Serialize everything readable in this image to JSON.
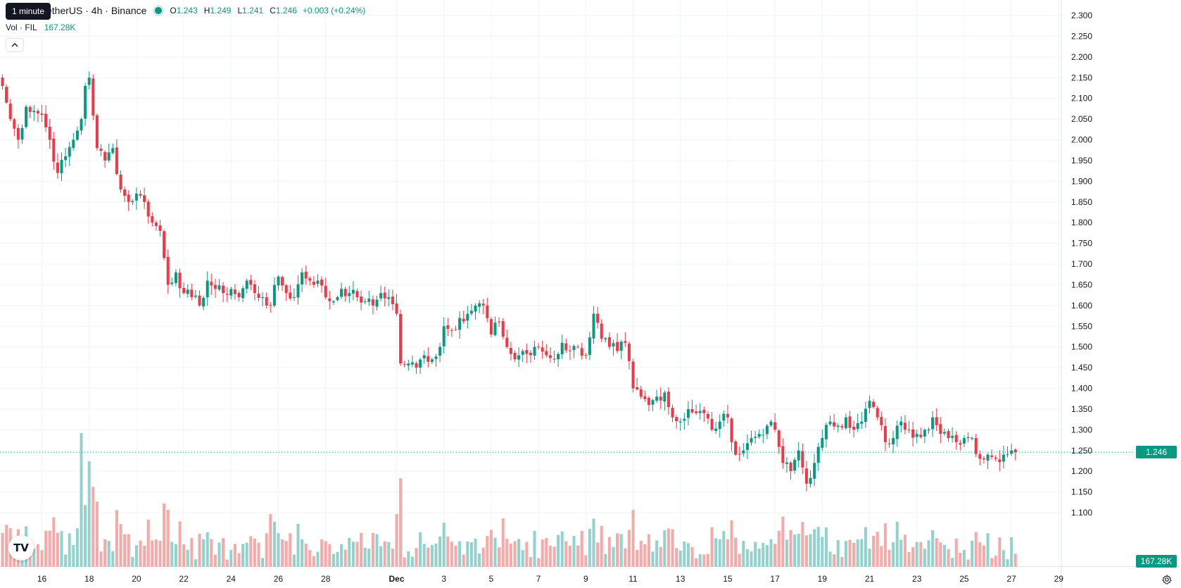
{
  "header": {
    "symbol_title": "etherUS · 4h · Binance",
    "tooltip": "1 minute",
    "ohlc": {
      "o_label": "O",
      "o_value": "1.243",
      "h_label": "H",
      "h_value": "1.249",
      "l_label": "L",
      "l_value": "1.241",
      "c_label": "C",
      "c_value": "1.246",
      "change": "+0.003 (+0.24%)"
    },
    "volume": {
      "label": "Vol · FIL",
      "value": "167.28K"
    }
  },
  "price_axis": {
    "ticks": [
      "2.300",
      "2.250",
      "2.200",
      "2.150",
      "2.100",
      "2.050",
      "2.000",
      "1.950",
      "1.900",
      "1.850",
      "1.800",
      "1.750",
      "1.700",
      "1.650",
      "1.600",
      "1.550",
      "1.500",
      "1.450",
      "1.400",
      "1.350",
      "1.300",
      "1.250",
      "1.200",
      "1.150",
      "1.100"
    ],
    "last_price": "1.246",
    "last_volume": "167.28K"
  },
  "time_axis": {
    "labels": [
      {
        "text": "16",
        "idx": 10,
        "bold": false
      },
      {
        "text": "18",
        "idx": 22,
        "bold": false
      },
      {
        "text": "20",
        "idx": 34,
        "bold": false
      },
      {
        "text": "22",
        "idx": 46,
        "bold": false
      },
      {
        "text": "24",
        "idx": 58,
        "bold": false
      },
      {
        "text": "26",
        "idx": 70,
        "bold": false
      },
      {
        "text": "28",
        "idx": 82,
        "bold": false
      },
      {
        "text": "Dec",
        "idx": 100,
        "bold": true
      },
      {
        "text": "3",
        "idx": 112,
        "bold": false
      },
      {
        "text": "5",
        "idx": 124,
        "bold": false
      },
      {
        "text": "7",
        "idx": 136,
        "bold": false
      },
      {
        "text": "9",
        "idx": 148,
        "bold": false
      },
      {
        "text": "11",
        "idx": 160,
        "bold": false
      },
      {
        "text": "13",
        "idx": 172,
        "bold": false
      },
      {
        "text": "15",
        "idx": 184,
        "bold": false
      },
      {
        "text": "17",
        "idx": 196,
        "bold": false
      },
      {
        "text": "19",
        "idx": 208,
        "bold": false
      },
      {
        "text": "21",
        "idx": 220,
        "bold": false
      },
      {
        "text": "23",
        "idx": 232,
        "bold": false
      },
      {
        "text": "25",
        "idx": 244,
        "bold": false
      },
      {
        "text": "27",
        "idx": 256,
        "bold": false
      },
      {
        "text": "29",
        "idx": 268,
        "bold": false
      }
    ]
  },
  "colors": {
    "up": "#089981",
    "down": "#f23645",
    "up_vol": "#92d2cc",
    "down_vol": "#f7a9a7",
    "grid": "#f0f3fa",
    "axis_text": "#131722"
  },
  "icons": {
    "collapse": "chevron-up-icon",
    "logo": "tradingview-logo",
    "settings": "gear-icon"
  },
  "chart_data": {
    "type": "candlestick",
    "interval": "4h",
    "ylim": [
      1.075,
      2.33
    ],
    "anchors": [
      [
        0,
        2.13
      ],
      [
        2,
        2.05
      ],
      [
        4,
        2.0
      ],
      [
        6,
        2.08
      ],
      [
        8,
        2.07
      ],
      [
        10,
        2.06
      ],
      [
        12,
        2.0
      ],
      [
        14,
        1.92
      ],
      [
        16,
        1.96
      ],
      [
        18,
        2.0
      ],
      [
        20,
        2.05
      ],
      [
        21,
        2.13
      ],
      [
        22,
        2.15
      ],
      [
        24,
        1.98
      ],
      [
        26,
        1.95
      ],
      [
        28,
        1.98
      ],
      [
        30,
        1.88
      ],
      [
        32,
        1.85
      ],
      [
        34,
        1.87
      ],
      [
        36,
        1.85
      ],
      [
        38,
        1.8
      ],
      [
        40,
        1.78
      ],
      [
        42,
        1.65
      ],
      [
        44,
        1.68
      ],
      [
        46,
        1.63
      ],
      [
        48,
        1.62
      ],
      [
        50,
        1.6
      ],
      [
        52,
        1.66
      ],
      [
        54,
        1.64
      ],
      [
        56,
        1.63
      ],
      [
        58,
        1.64
      ],
      [
        60,
        1.62
      ],
      [
        62,
        1.66
      ],
      [
        64,
        1.63
      ],
      [
        66,
        1.62
      ],
      [
        68,
        1.6
      ],
      [
        70,
        1.67
      ],
      [
        72,
        1.63
      ],
      [
        74,
        1.62
      ],
      [
        76,
        1.68
      ],
      [
        78,
        1.66
      ],
      [
        80,
        1.66
      ],
      [
        82,
        1.62
      ],
      [
        84,
        1.61
      ],
      [
        86,
        1.64
      ],
      [
        88,
        1.63
      ],
      [
        90,
        1.62
      ],
      [
        92,
        1.61
      ],
      [
        94,
        1.6
      ],
      [
        96,
        1.63
      ],
      [
        98,
        1.62
      ],
      [
        100,
        1.58
      ],
      [
        101,
        1.46
      ],
      [
        103,
        1.46
      ],
      [
        105,
        1.45
      ],
      [
        107,
        1.48
      ],
      [
        109,
        1.47
      ],
      [
        111,
        1.5
      ],
      [
        112,
        1.55
      ],
      [
        114,
        1.54
      ],
      [
        116,
        1.57
      ],
      [
        118,
        1.58
      ],
      [
        120,
        1.6
      ],
      [
        122,
        1.6
      ],
      [
        124,
        1.53
      ],
      [
        126,
        1.56
      ],
      [
        128,
        1.5
      ],
      [
        130,
        1.47
      ],
      [
        132,
        1.49
      ],
      [
        134,
        1.48
      ],
      [
        136,
        1.5
      ],
      [
        138,
        1.48
      ],
      [
        140,
        1.47
      ],
      [
        142,
        1.51
      ],
      [
        144,
        1.49
      ],
      [
        146,
        1.5
      ],
      [
        148,
        1.48
      ],
      [
        150,
        1.58
      ],
      [
        152,
        1.52
      ],
      [
        154,
        1.5
      ],
      [
        156,
        1.49
      ],
      [
        158,
        1.51
      ],
      [
        160,
        1.4
      ],
      [
        162,
        1.38
      ],
      [
        164,
        1.36
      ],
      [
        166,
        1.38
      ],
      [
        168,
        1.39
      ],
      [
        170,
        1.33
      ],
      [
        172,
        1.32
      ],
      [
        174,
        1.35
      ],
      [
        176,
        1.34
      ],
      [
        178,
        1.34
      ],
      [
        180,
        1.3
      ],
      [
        182,
        1.32
      ],
      [
        184,
        1.33
      ],
      [
        186,
        1.24
      ],
      [
        188,
        1.25
      ],
      [
        190,
        1.28
      ],
      [
        192,
        1.29
      ],
      [
        194,
        1.31
      ],
      [
        196,
        1.3
      ],
      [
        198,
        1.22
      ],
      [
        200,
        1.2
      ],
      [
        202,
        1.25
      ],
      [
        204,
        1.17
      ],
      [
        206,
        1.22
      ],
      [
        208,
        1.28
      ],
      [
        210,
        1.32
      ],
      [
        212,
        1.31
      ],
      [
        214,
        1.33
      ],
      [
        216,
        1.3
      ],
      [
        218,
        1.32
      ],
      [
        220,
        1.37
      ],
      [
        222,
        1.33
      ],
      [
        224,
        1.27
      ],
      [
        226,
        1.28
      ],
      [
        228,
        1.32
      ],
      [
        230,
        1.3
      ],
      [
        232,
        1.29
      ],
      [
        234,
        1.3
      ],
      [
        236,
        1.33
      ],
      [
        238,
        1.29
      ],
      [
        240,
        1.28
      ],
      [
        242,
        1.27
      ],
      [
        244,
        1.28
      ],
      [
        246,
        1.28
      ],
      [
        248,
        1.23
      ],
      [
        250,
        1.24
      ],
      [
        252,
        1.23
      ],
      [
        254,
        1.24
      ],
      [
        256,
        1.25
      ],
      [
        257,
        1.246
      ]
    ]
  }
}
